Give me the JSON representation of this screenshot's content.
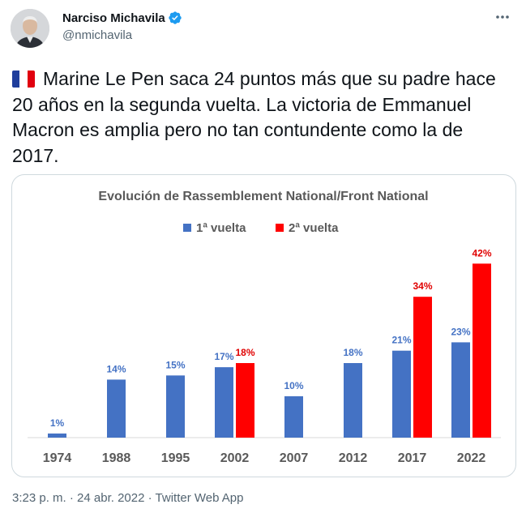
{
  "author": {
    "display_name": "Narciso Michavila",
    "handle": "@nmichavila",
    "verified": true,
    "avatar": "profile-photo"
  },
  "tweet": {
    "flag": "france-flag",
    "text": "Marine Le Pen saca 24 puntos más que su padre hace 20 años en la segunda vuelta. La victoria de Emmanuel Macron es amplia pero no tan contundente como la de 2017."
  },
  "meta": {
    "time": "3:23 p. m.",
    "separator1": " · ",
    "date": "24 abr. 2022",
    "separator2": " · ",
    "source": "Twitter Web App"
  },
  "colors": {
    "first_round": "#4472c4",
    "second_round": "#ff0000",
    "verified_badge": "#1d9bf0",
    "muted_text": "#536471"
  },
  "chart_data": {
    "type": "bar",
    "title": "Evolución de Rassemblement National/Front National",
    "categories": [
      "1974",
      "1988",
      "1995",
      "2002",
      "2007",
      "2012",
      "2017",
      "2022"
    ],
    "series": [
      {
        "name": "1ª vuelta",
        "values": [
          1,
          14,
          15,
          17,
          10,
          18,
          21,
          23
        ],
        "labels": [
          "1%",
          "14%",
          "15%",
          "17%",
          "10%",
          "18%",
          "21%",
          "23%"
        ]
      },
      {
        "name": "2ª vuelta",
        "values": [
          null,
          null,
          null,
          18,
          null,
          null,
          34,
          42
        ],
        "labels": [
          null,
          null,
          null,
          "18%",
          null,
          null,
          "34%",
          "42%"
        ]
      }
    ],
    "ylim": [
      0,
      45
    ],
    "legend": "top-center",
    "grid": false,
    "xlabel": "",
    "ylabel": ""
  }
}
